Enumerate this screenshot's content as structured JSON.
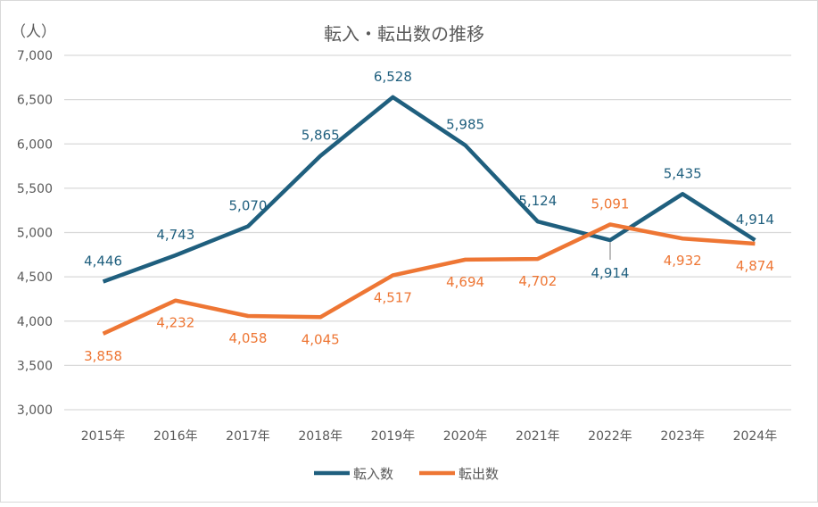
{
  "chart_data": {
    "type": "line",
    "title": "転入・転出数の推移",
    "ylabel": "（人）",
    "xlabel": "",
    "categories": [
      "2015年",
      "2016年",
      "2017年",
      "2018年",
      "2019年",
      "2020年",
      "2021年",
      "2022年",
      "2023年",
      "2024年"
    ],
    "ylim": [
      3000,
      7000
    ],
    "yticks": [
      3000,
      3500,
      4000,
      4500,
      5000,
      5500,
      6000,
      6500,
      7000
    ],
    "ytick_labels": [
      "3,000",
      "3,500",
      "4,000",
      "4,500",
      "5,000",
      "5,500",
      "6,000",
      "6,500",
      "7,000"
    ],
    "grid": true,
    "legend": "bottom",
    "series": [
      {
        "name": "転入数",
        "color": "#1f5f7e",
        "values": [
          4446,
          4743,
          5070,
          5865,
          6528,
          5985,
          5124,
          4914,
          5435,
          4914
        ],
        "labels": [
          "4,446",
          "4,743",
          "5,070",
          "5,865",
          "6,528",
          "5,985",
          "5,124",
          "4,914",
          "5,435",
          "4,914"
        ]
      },
      {
        "name": "転出数",
        "color": "#ee7634",
        "values": [
          3858,
          4232,
          4058,
          4045,
          4517,
          4694,
          4702,
          5091,
          4932,
          4874
        ],
        "labels": [
          "3,858",
          "4,232",
          "4,058",
          "4,045",
          "4,517",
          "4,694",
          "4,702",
          "5,091",
          "4,932",
          "4,874"
        ]
      }
    ]
  }
}
